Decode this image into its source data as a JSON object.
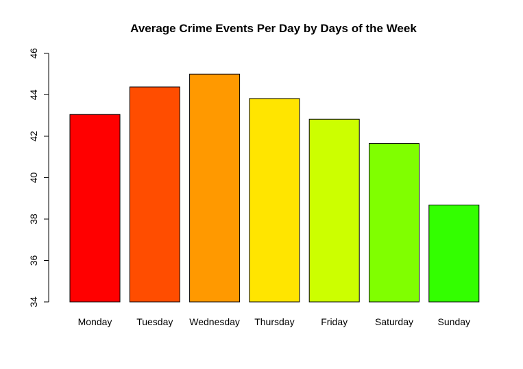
{
  "chart_data": {
    "type": "bar",
    "title": "Average Crime Events Per Day by Days of the Week",
    "xlabel": "",
    "ylabel": "",
    "categories": [
      "Monday",
      "Tuesday",
      "Wednesday",
      "Thursday",
      "Friday",
      "Saturday",
      "Sunday"
    ],
    "values": [
      43.05,
      44.38,
      45.0,
      43.82,
      42.82,
      41.65,
      38.68
    ],
    "colors": [
      "#FF0000",
      "#FF4D00",
      "#FF9900",
      "#FFE500",
      "#CCFF00",
      "#80FF00",
      "#33FF00"
    ],
    "ylim": [
      34,
      46
    ],
    "yticks": [
      "34",
      "36",
      "38",
      "40",
      "42",
      "44",
      "46"
    ],
    "grid": false,
    "legend": "none"
  }
}
